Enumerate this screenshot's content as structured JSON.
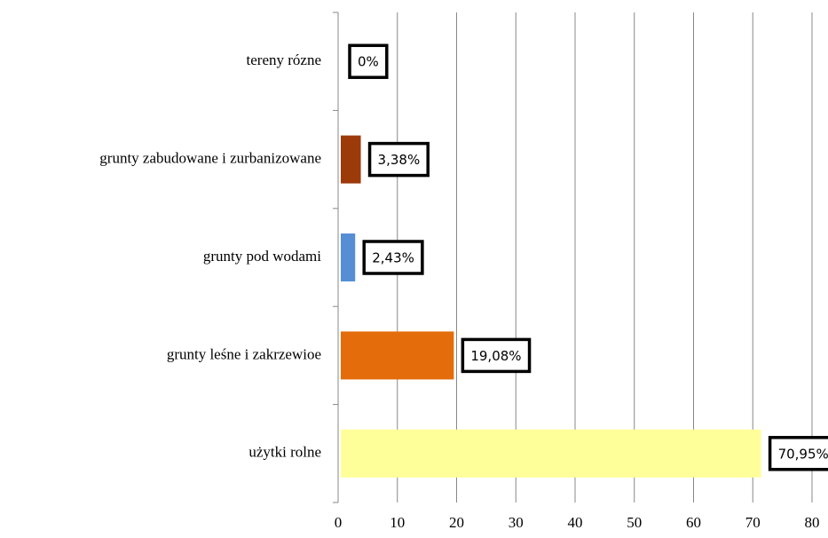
{
  "chart_data": {
    "type": "bar",
    "orientation": "horizontal",
    "categories": [
      "tereny rózne",
      "grunty zabudowane i zurbanizowane",
      "grunty pod wodami",
      "grunty leśne i zakrzewioe",
      "użytki rolne"
    ],
    "values": [
      0,
      3.38,
      2.43,
      19.08,
      70.95
    ],
    "value_labels": [
      "0%",
      "3,38%",
      "2,43%",
      "19,08%",
      "70,95%"
    ],
    "colors": [
      "#9c3a0a",
      "#9c3a0a",
      "#558ed5",
      "#e46c0a",
      "#ffff99"
    ],
    "xlim": [
      0,
      80
    ],
    "xticks": [
      0,
      10,
      20,
      30,
      40,
      50,
      60,
      70,
      80
    ],
    "grid": true
  }
}
